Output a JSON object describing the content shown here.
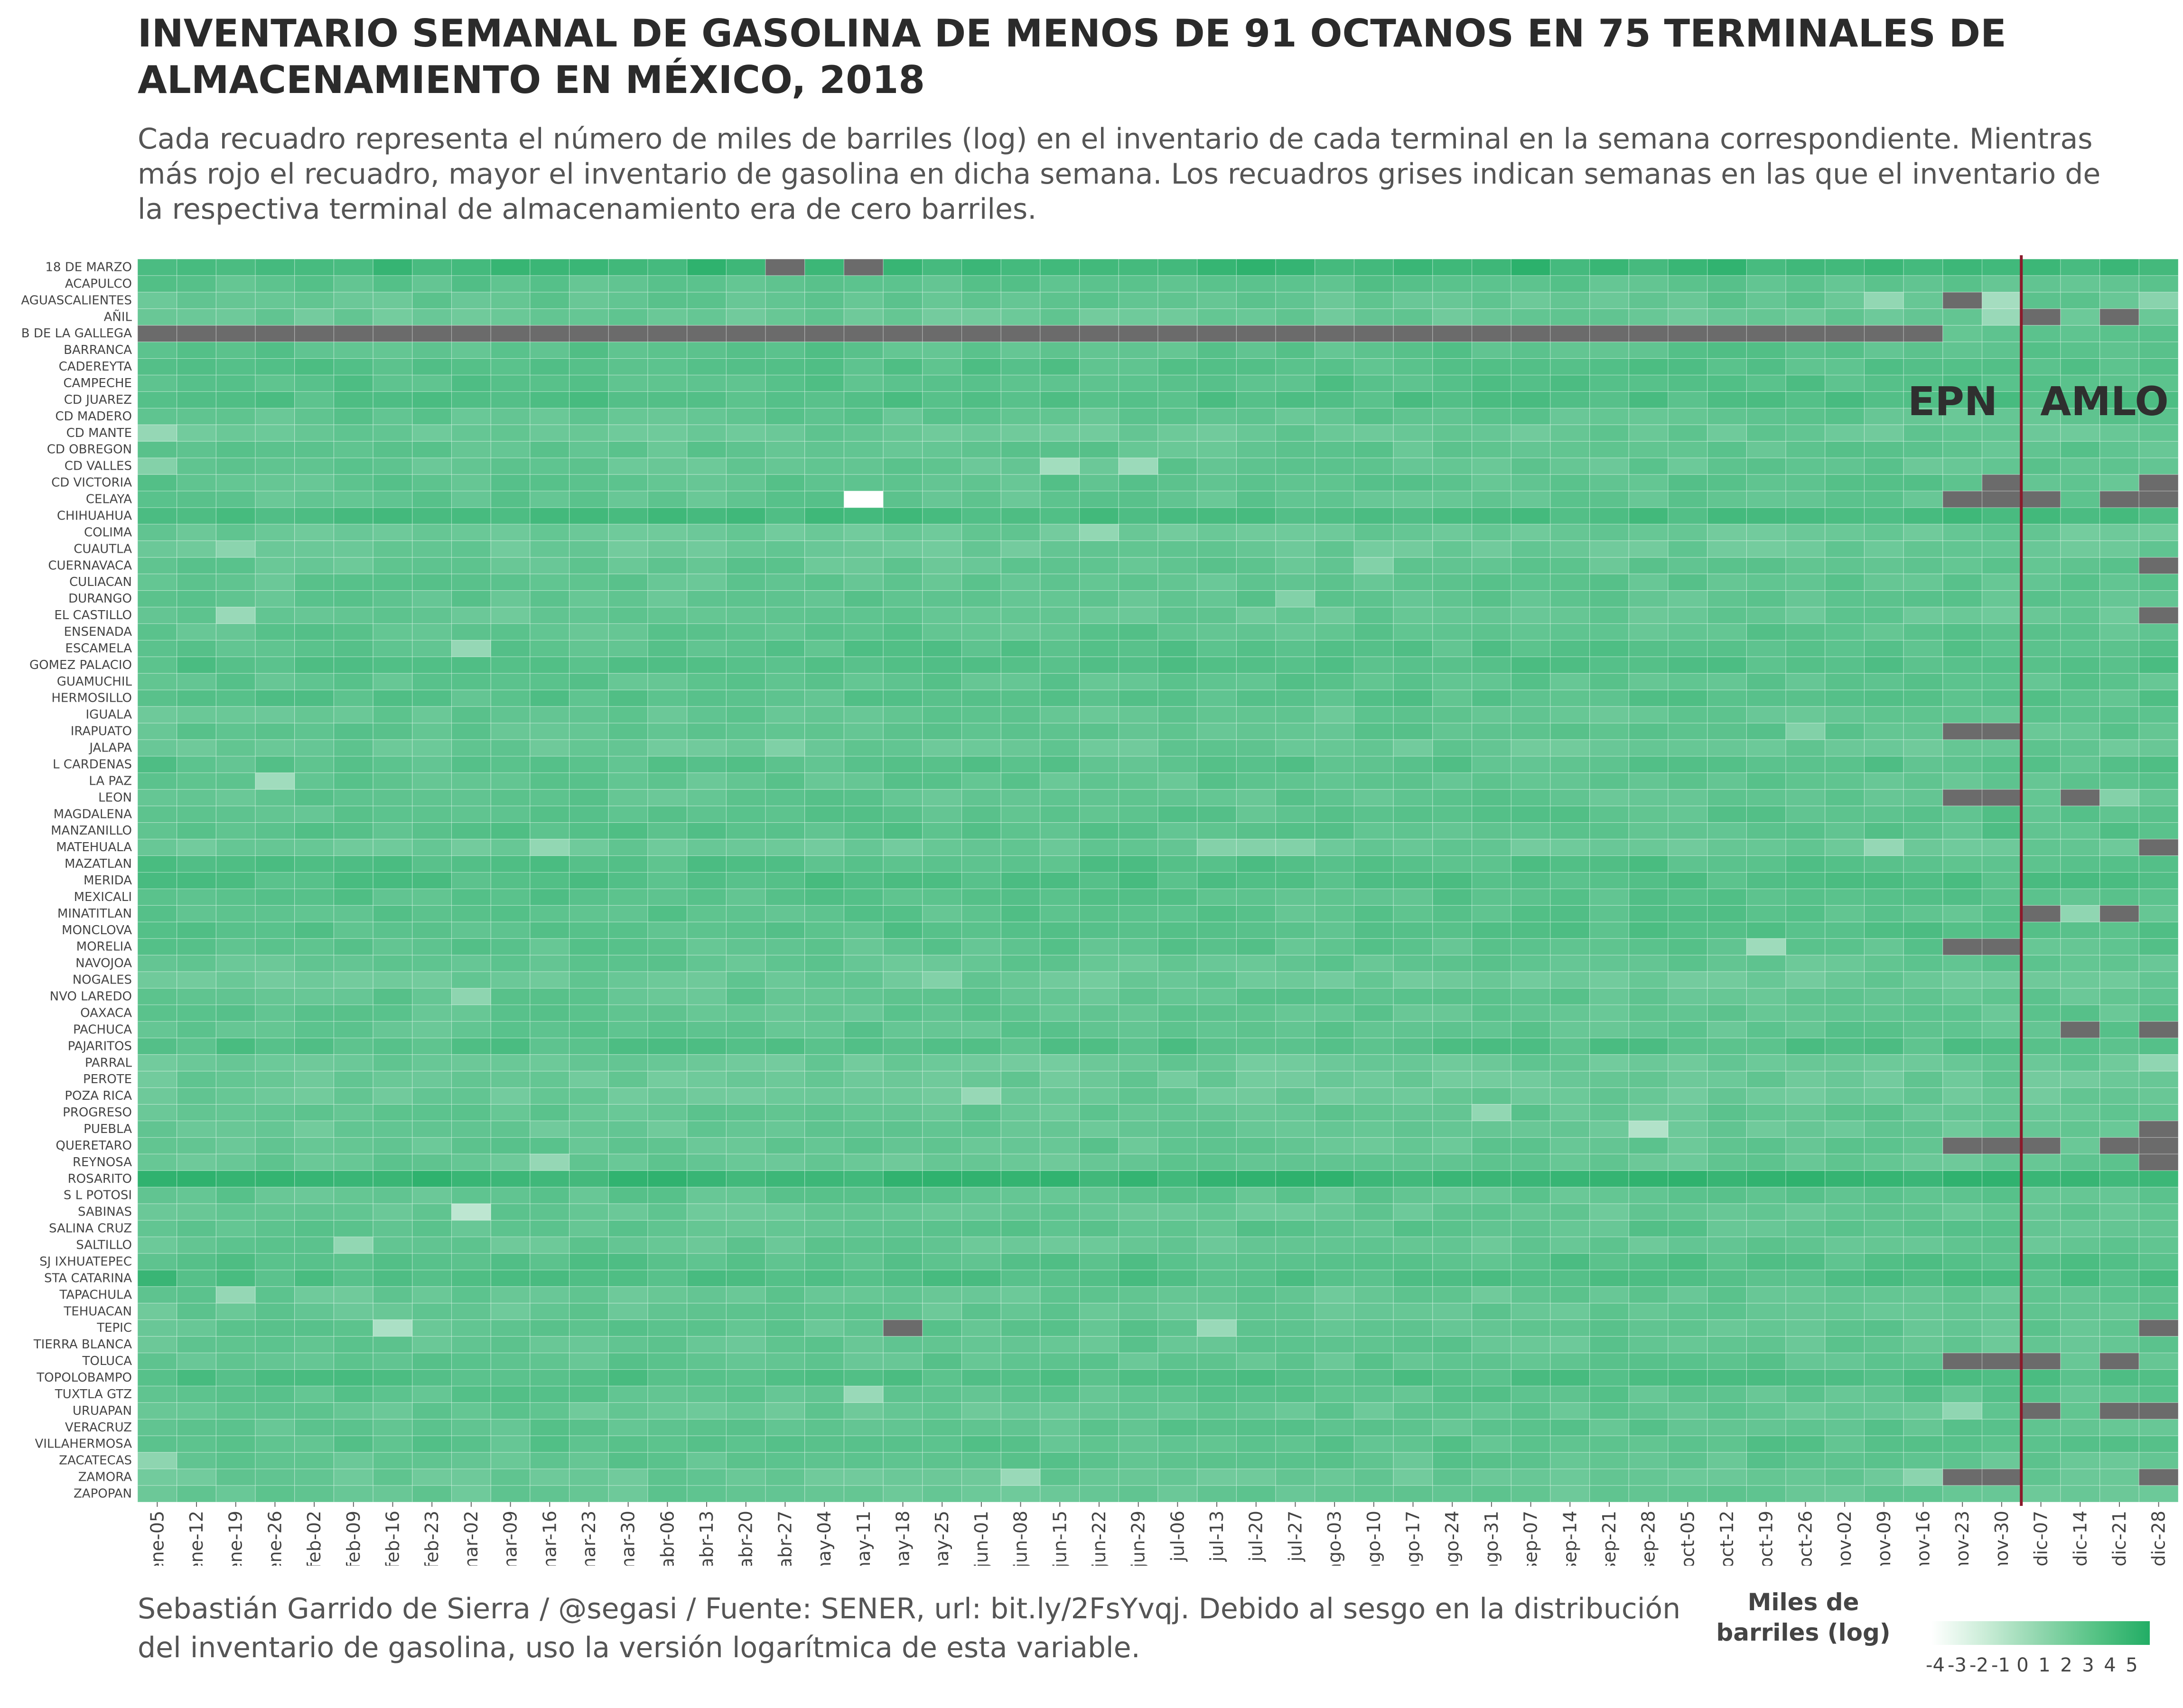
{
  "title": "INVENTARIO SEMANAL DE GASOLINA DE MENOS DE 91 OCTANOS EN 75 TERMINALES DE ALMACENAMIENTO EN MÉXICO, 2018",
  "subtitle": "Cada recuadro representa el número de miles de barriles (log) en el inventario de cada terminal en la semana correspondiente. Mientras más rojo el recuadro, mayor el inventario de gasolina en dicha semana. Los recuadros grises indican semanas en las que el inventario de la respectiva terminal de almacenamiento era de cero barriles.",
  "caption": "Sebastián Garrido de Sierra / @segasi / Fuente: SENER, url: bit.ly/2FsYvqj. Debido al sesgo en la distribución del inventario de gasolina, uso la versión logarítmica de esta variable.",
  "legend": {
    "title": "Miles de barriles (log)",
    "ticks": [
      "-4",
      "-3",
      "-2",
      "-1",
      "0",
      "1",
      "2",
      "3",
      "4",
      "5"
    ],
    "range": [
      -4.5,
      5.5
    ],
    "low_color": "#ffffff",
    "high_color": "#22ad65",
    "zero_color": "#6b6b6b"
  },
  "annotations": {
    "left_label": "EPN",
    "right_label": "AMLO",
    "divider_color": "#8b1a2b",
    "divider_after_week": "nov-30"
  },
  "chart_data": {
    "type": "heatmap",
    "x_label": "",
    "y_label": "",
    "weeks": [
      "ene-05",
      "ene-12",
      "ene-19",
      "ene-26",
      "feb-02",
      "feb-09",
      "feb-16",
      "feb-23",
      "mar-02",
      "mar-09",
      "mar-16",
      "mar-23",
      "mar-30",
      "abr-06",
      "abr-13",
      "abr-20",
      "abr-27",
      "may-04",
      "may-11",
      "may-18",
      "may-25",
      "jun-01",
      "jun-08",
      "jun-15",
      "jun-22",
      "jun-29",
      "jul-06",
      "jul-13",
      "jul-20",
      "jul-27",
      "ago-03",
      "ago-10",
      "ago-17",
      "ago-24",
      "ago-31",
      "sep-07",
      "sep-14",
      "sep-21",
      "sep-28",
      "oct-05",
      "oct-12",
      "oct-19",
      "oct-26",
      "nov-02",
      "nov-09",
      "nov-16",
      "nov-23",
      "nov-30",
      "dic-07",
      "dic-14",
      "dic-21",
      "dic-28"
    ],
    "terminals": [
      "18 DE MARZO",
      "ACAPULCO",
      "AGUASCALIENTES",
      "AÑIL",
      "B DE LA GALLEGA",
      "BARRANCA",
      "CADEREYTA",
      "CAMPECHE",
      "CD JUAREZ",
      "CD MADERO",
      "CD MANTE",
      "CD OBREGON",
      "CD VALLES",
      "CD VICTORIA",
      "CELAYA",
      "CHIHUAHUA",
      "COLIMA",
      "CUAUTLA",
      "CUERNAVACA",
      "CULIACAN",
      "DURANGO",
      "EL CASTILLO",
      "ENSENADA",
      "ESCAMELA",
      "GOMEZ PALACIO",
      "GUAMUCHIL",
      "HERMOSILLO",
      "IGUALA",
      "IRAPUATO",
      "JALAPA",
      "L CARDENAS",
      "LA PAZ",
      "LEON",
      "MAGDALENA",
      "MANZANILLO",
      "MATEHUALA",
      "MAZATLAN",
      "MERIDA",
      "MEXICALI",
      "MINATITLAN",
      "MONCLOVA",
      "MORELIA",
      "NAVOJOA",
      "NOGALES",
      "NVO LAREDO",
      "OAXACA",
      "PACHUCA",
      "PAJARITOS",
      "PARRAL",
      "PEROTE",
      "POZA RICA",
      "PROGRESO",
      "PUEBLA",
      "QUERETARO",
      "REYNOSA",
      "ROSARITO",
      "S L POTOSI",
      "SABINAS",
      "SALINA CRUZ",
      "SALTILLO",
      "SJ IXHUATEPEC",
      "STA CATARINA",
      "TAPACHULA",
      "TEHUACAN",
      "TEPIC",
      "TIERRA BLANCA",
      "TOLUCA",
      "TOPOLOBAMPO",
      "TUXTLA GTZ",
      "URUAPAN",
      "VERACRUZ",
      "VILLAHERMOSA",
      "ZACATECAS",
      "ZAMORA",
      "ZAPOPAN"
    ],
    "base_levels": [
      4.3,
      3.2,
      2.9,
      2.6,
      3.0,
      3.2,
      3.4,
      3.4,
      3.6,
      3.0,
      2.7,
      3.0,
      2.9,
      3.1,
      3.0,
      3.9,
      2.6,
      2.6,
      2.9,
      3.0,
      3.0,
      2.8,
      3.1,
      3.3,
      3.5,
      3.1,
      3.3,
      2.9,
      3.0,
      2.7,
      3.3,
      3.0,
      3.0,
      3.2,
      3.3,
      2.6,
      3.5,
      3.6,
      3.3,
      3.2,
      3.4,
      3.1,
      2.9,
      2.6,
      3.0,
      3.0,
      3.0,
      3.5,
      2.6,
      2.6,
      2.6,
      2.9,
      2.7,
      2.9,
      2.8,
      4.6,
      3.0,
      2.8,
      3.1,
      2.8,
      3.4,
      3.6,
      2.8,
      2.8,
      3.0,
      2.9,
      3.0,
      3.6,
      3.1,
      2.8,
      3.1,
      3.2,
      3.0,
      2.7,
      2.8
    ],
    "low_cells": [
      [
        "CD MANTE",
        "ene-05",
        0.8
      ],
      [
        "CD VALLES",
        "ene-05",
        1.5
      ],
      [
        "CD VALLES",
        "jun-15",
        0.2
      ],
      [
        "CD VALLES",
        "jun-29",
        0.5
      ],
      [
        "AGUASCALIENTES",
        "nov-09",
        0.9
      ],
      [
        "AGUASCALIENTES",
        "nov-30",
        0.1
      ],
      [
        "AÑIL",
        "nov-30",
        0.6
      ],
      [
        "CELAYA",
        "may-11",
        -4.5
      ],
      [
        "COLIMA",
        "jun-22",
        0.9
      ],
      [
        "CUAUTLA",
        "ene-19",
        1.2
      ],
      [
        "EL CASTILLO",
        "ene-19",
        0.6
      ],
      [
        "ESCAMELA",
        "mar-02",
        0.8
      ],
      [
        "LA PAZ",
        "ene-26",
        0.3
      ],
      [
        "MATEHUALA",
        "mar-16",
        0.9
      ],
      [
        "MATEHUALA",
        "nov-09",
        0.8
      ],
      [
        "MATEHUALA",
        "jul-13",
        1.5
      ],
      [
        "MATEHUALA",
        "jul-20",
        1.5
      ],
      [
        "MATEHUALA",
        "jul-27",
        1.6
      ],
      [
        "MORELIA",
        "oct-19",
        0.4
      ],
      [
        "NVO LAREDO",
        "mar-02",
        1.1
      ],
      [
        "POZA RICA",
        "jun-01",
        0.7
      ],
      [
        "PROGRESO",
        "ago-31",
        0.9
      ],
      [
        "PUEBLA",
        "sep-28",
        -0.5
      ],
      [
        "REYNOSA",
        "mar-16",
        0.8
      ],
      [
        "SABINAS",
        "mar-02",
        -1.0
      ],
      [
        "SALTILLO",
        "feb-09",
        0.9
      ],
      [
        "TAPACHULA",
        "ene-19",
        0.8
      ],
      [
        "TEPIC",
        "feb-16",
        -0.2
      ],
      [
        "TEPIC",
        "jul-13",
        0.6
      ],
      [
        "TUXTLA GTZ",
        "may-11",
        0.6
      ],
      [
        "ZACATECAS",
        "ene-05",
        1.1
      ],
      [
        "ZAMORA",
        "jun-08",
        0.6
      ],
      [
        "ZAMORA",
        "nov-16",
        1.2
      ],
      [
        "URUAPAN",
        "nov-23",
        1.0
      ],
      [
        "PARRAL",
        "dic-28",
        1.0
      ],
      [
        "CUERNAVACA",
        "ago-10",
        1.6
      ],
      [
        "JALAPA",
        "abr-27",
        1.7
      ],
      [
        "DURANGO",
        "jul-27",
        1.6
      ],
      [
        "NOGALES",
        "may-25",
        1.6
      ],
      [
        "IRAPUATO",
        "oct-26",
        1.6
      ],
      [
        "MINATITLAN",
        "dic-14",
        1.0
      ],
      [
        "AGUASCALIENTES",
        "dic-28",
        1.3
      ],
      [
        "LEON",
        "dic-21",
        1.5
      ]
    ],
    "high_cells": [
      [
        "18 DE MARZO",
        "abr-13",
        5.0
      ],
      [
        "18 DE MARZO",
        "jul-20",
        5.0
      ],
      [
        "18 DE MARZO",
        "sep-07",
        5.1
      ],
      [
        "18 DE MARZO",
        "oct-12",
        4.9
      ],
      [
        "ROSARITO",
        "ago-03",
        5.0
      ],
      [
        "ROSARITO",
        "oct-26",
        5.0
      ],
      [
        "ROSARITO",
        "mar-30",
        4.9
      ],
      [
        "STA CATARINA",
        "ene-05",
        4.6
      ]
    ],
    "zero_cells": [
      [
        "18 DE MARZO",
        "abr-27"
      ],
      [
        "18 DE MARZO",
        "may-11"
      ],
      [
        "AGUASCALIENTES",
        "nov-23"
      ],
      [
        "AÑIL",
        "dic-07"
      ],
      [
        "AÑIL",
        "dic-21"
      ],
      [
        "B DE LA GALLEGA",
        "ene-05..nov-16"
      ],
      [
        "CD VICTORIA",
        "nov-30"
      ],
      [
        "CD VICTORIA",
        "dic-28"
      ],
      [
        "CELAYA",
        "nov-23"
      ],
      [
        "CELAYA",
        "nov-30"
      ],
      [
        "CELAYA",
        "dic-07"
      ],
      [
        "CELAYA",
        "dic-21"
      ],
      [
        "CELAYA",
        "dic-28"
      ],
      [
        "CUERNAVACA",
        "dic-28"
      ],
      [
        "EL CASTILLO",
        "dic-28"
      ],
      [
        "IRAPUATO",
        "nov-23"
      ],
      [
        "IRAPUATO",
        "nov-30"
      ],
      [
        "LEON",
        "nov-23"
      ],
      [
        "LEON",
        "nov-30"
      ],
      [
        "LEON",
        "dic-14"
      ],
      [
        "MATEHUALA",
        "dic-28"
      ],
      [
        "MINATITLAN",
        "dic-07"
      ],
      [
        "MINATITLAN",
        "dic-21"
      ],
      [
        "MORELIA",
        "nov-23"
      ],
      [
        "MORELIA",
        "nov-30"
      ],
      [
        "PACHUCA",
        "dic-14"
      ],
      [
        "PACHUCA",
        "dic-28"
      ],
      [
        "PUEBLA",
        "dic-28"
      ],
      [
        "QUERETARO",
        "nov-23"
      ],
      [
        "QUERETARO",
        "nov-30"
      ],
      [
        "QUERETARO",
        "dic-07"
      ],
      [
        "QUERETARO",
        "dic-21"
      ],
      [
        "QUERETARO",
        "dic-28"
      ],
      [
        "REYNOSA",
        "dic-28"
      ],
      [
        "TEPIC",
        "may-18"
      ],
      [
        "TEPIC",
        "dic-28"
      ],
      [
        "TOLUCA",
        "nov-23"
      ],
      [
        "TOLUCA",
        "nov-30"
      ],
      [
        "TOLUCA",
        "dic-07"
      ],
      [
        "TOLUCA",
        "dic-21"
      ],
      [
        "URUAPAN",
        "dic-07"
      ],
      [
        "URUAPAN",
        "dic-21"
      ],
      [
        "URUAPAN",
        "dic-28"
      ],
      [
        "ZAMORA",
        "nov-23"
      ],
      [
        "ZAMORA",
        "nov-30"
      ],
      [
        "ZAMORA",
        "dic-28"
      ]
    ]
  }
}
